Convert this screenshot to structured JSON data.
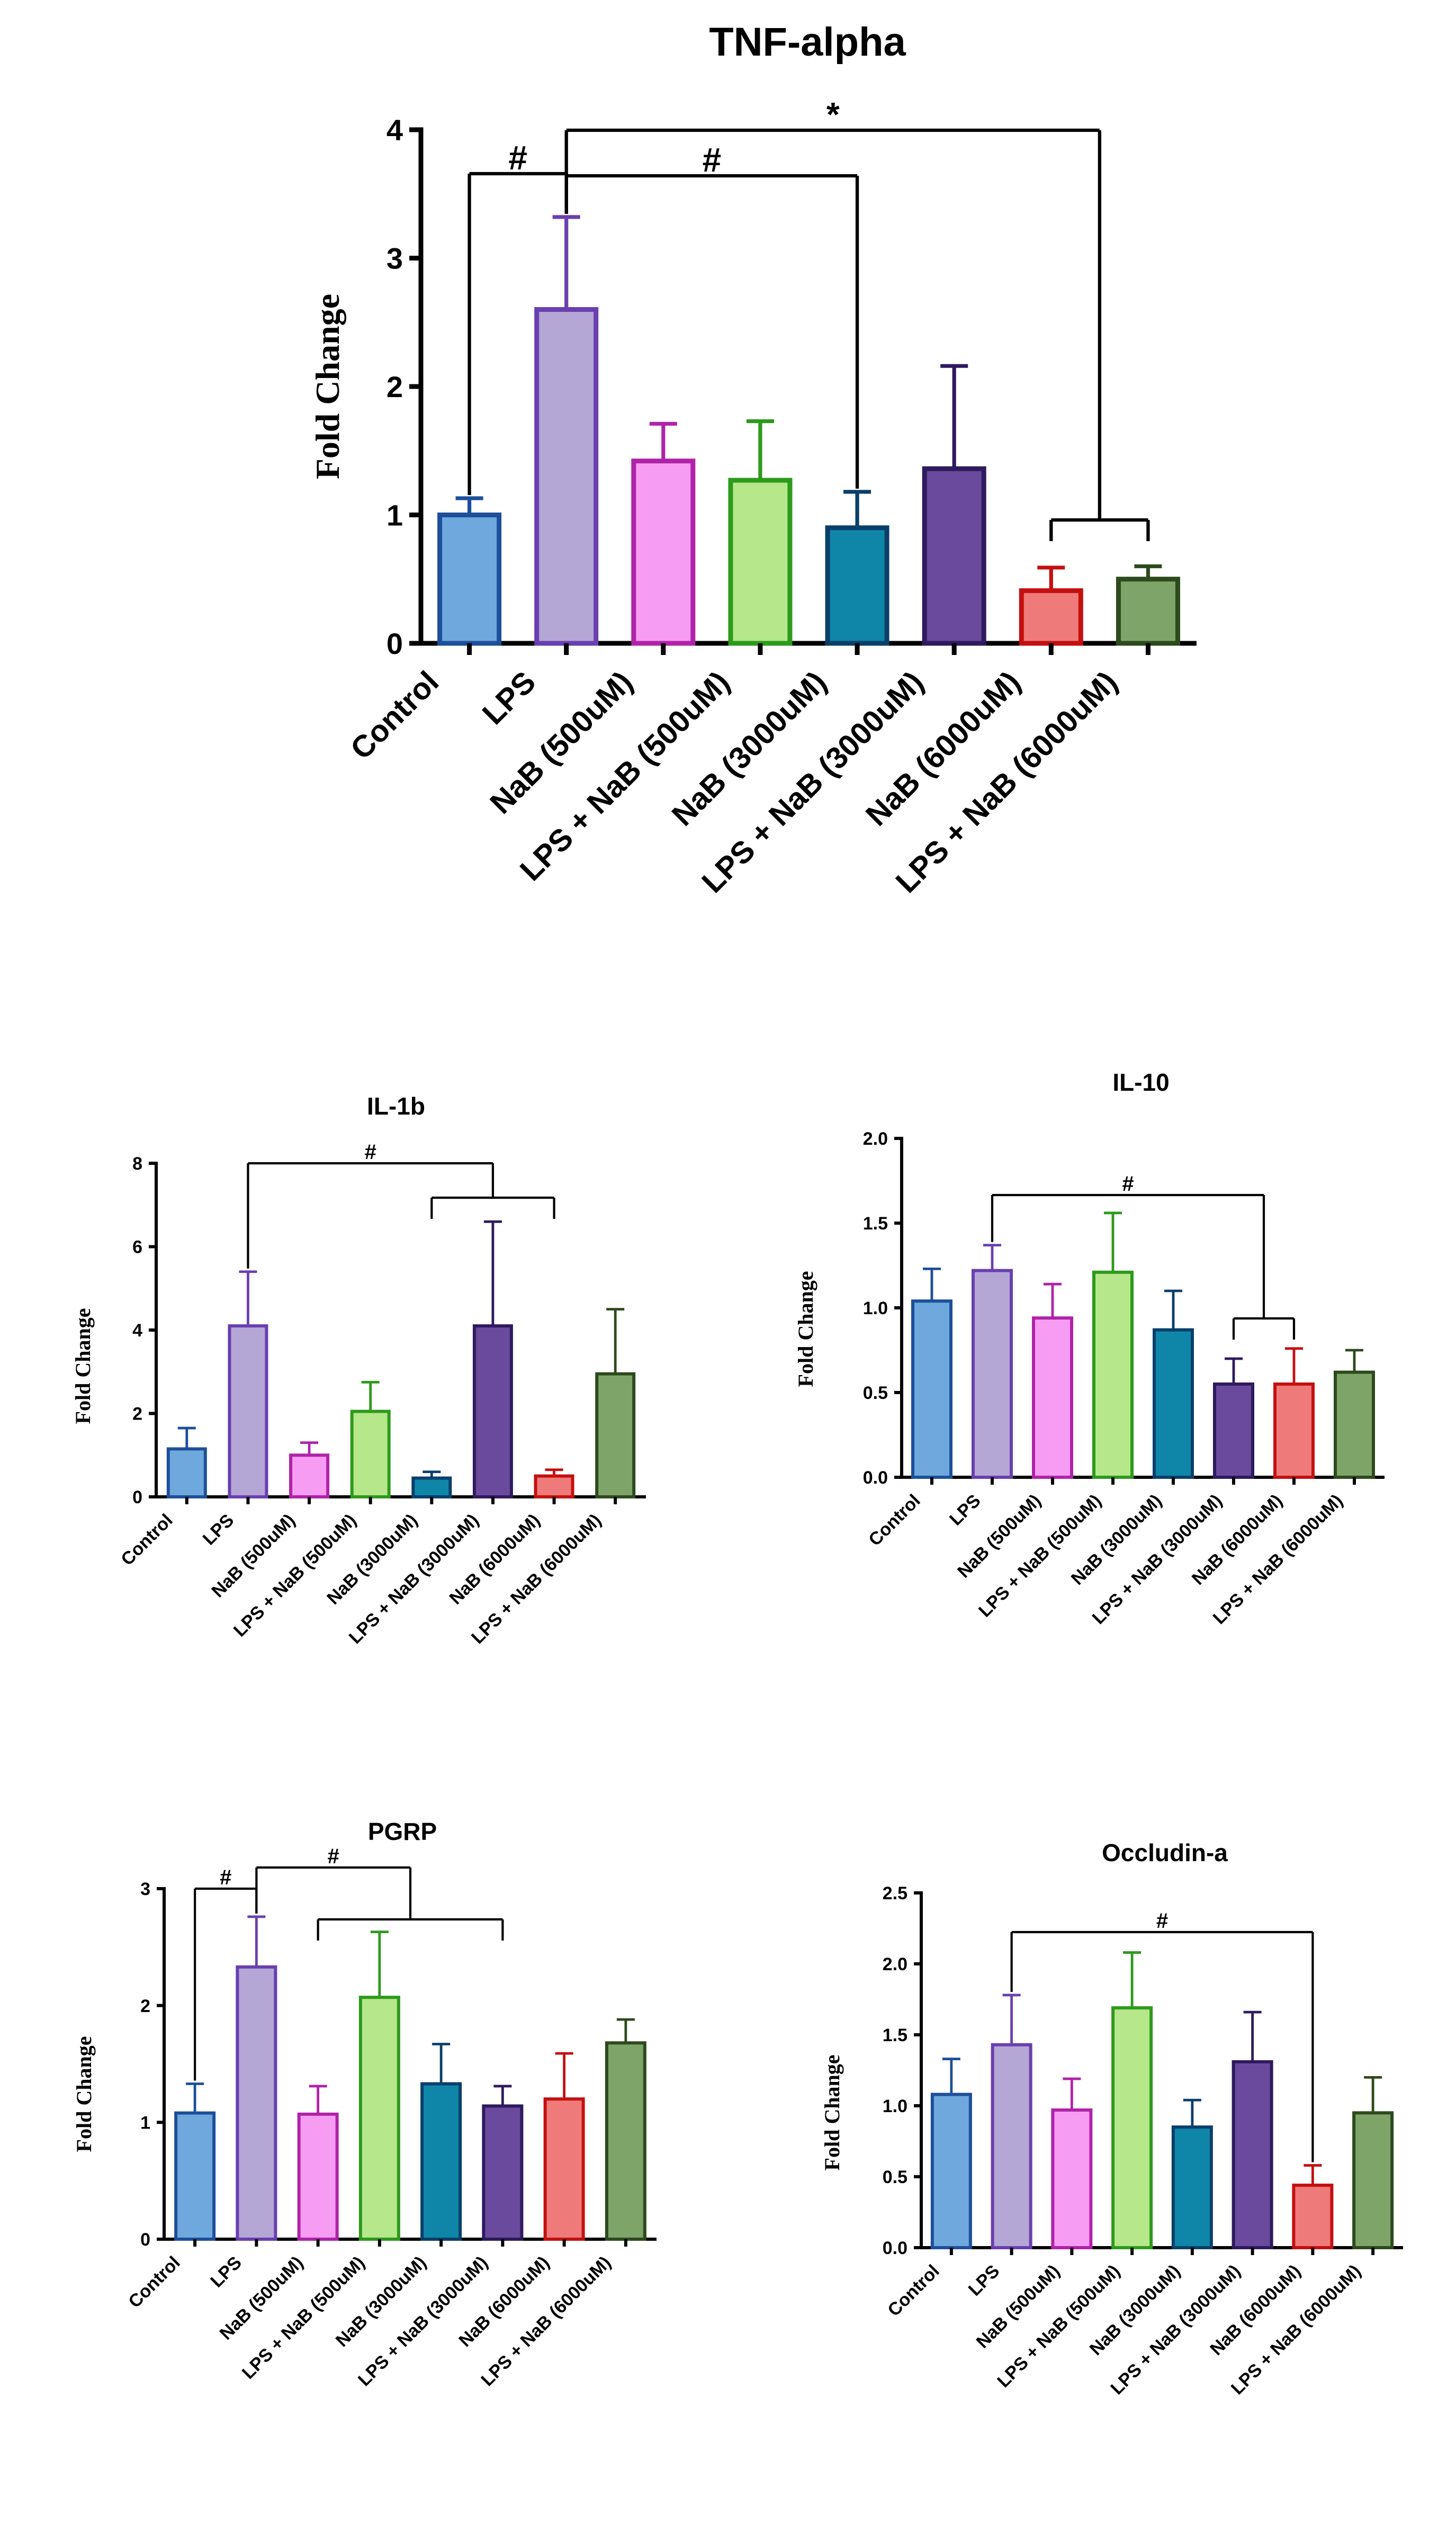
{
  "chart_data": [
    {
      "type": "bar",
      "title": "TNF-alpha",
      "ylabel": "Fold Change",
      "xlabel": "",
      "ylim": [
        0,
        4
      ],
      "yticks": [
        "0",
        "1",
        "2",
        "3",
        "4"
      ],
      "categories": [
        "Control",
        "LPS",
        "NaB (500uM)",
        "LPS + NaB (500uM)",
        "NaB (3000uM)",
        "LPS + NaB (3000uM)",
        "NaB (6000uM)",
        "LPS + NaB (6000uM)"
      ],
      "values": [
        1.0,
        2.6,
        1.42,
        1.27,
        0.9,
        1.36,
        0.41,
        0.5
      ],
      "errors": [
        0.13,
        0.72,
        0.29,
        0.46,
        0.28,
        0.8,
        0.18,
        0.1
      ],
      "brackets": [
        {
          "from": 0,
          "to": 1,
          "label": "#"
        },
        {
          "from": 1,
          "to": 4,
          "label": "#"
        },
        {
          "from": 1,
          "to": "6-7",
          "label": "*"
        }
      ]
    },
    {
      "type": "bar",
      "title": "IL-1b",
      "ylabel": "Fold Change",
      "xlabel": "",
      "ylim": [
        0,
        8
      ],
      "yticks": [
        "0",
        "2",
        "4",
        "6",
        "8"
      ],
      "categories": [
        "Control",
        "LPS",
        "NaB (500uM)",
        "LPS + NaB (500uM)",
        "NaB (3000uM)",
        "LPS + NaB (3000uM)",
        "NaB (6000uM)",
        "LPS + NaB (6000uM)"
      ],
      "values": [
        1.15,
        4.1,
        1.0,
        2.05,
        0.45,
        4.1,
        0.5,
        2.95
      ],
      "errors": [
        0.5,
        1.3,
        0.3,
        0.7,
        0.15,
        2.5,
        0.15,
        1.55
      ],
      "brackets": [
        {
          "from": 1,
          "to": "4-6",
          "label": "#"
        }
      ]
    },
    {
      "type": "bar",
      "title": "IL-10",
      "ylabel": "Fold Change",
      "xlabel": "",
      "ylim": [
        0,
        2
      ],
      "yticks": [
        "0.0",
        "0.5",
        "1.0",
        "1.5",
        "2.0"
      ],
      "categories": [
        "Control",
        "LPS",
        "NaB (500uM)",
        "LPS + NaB (500uM)",
        "NaB (3000uM)",
        "LPS + NaB (3000uM)",
        "NaB (6000uM)",
        "LPS + NaB (6000uM)"
      ],
      "values": [
        1.04,
        1.22,
        0.94,
        1.21,
        0.87,
        0.55,
        0.55,
        0.62
      ],
      "errors": [
        0.19,
        0.15,
        0.2,
        0.35,
        0.23,
        0.15,
        0.21,
        0.13
      ],
      "brackets": [
        {
          "from": 1,
          "to": "5-6",
          "label": "#"
        }
      ]
    },
    {
      "type": "bar",
      "title": "PGRP",
      "ylabel": "Fold Change",
      "xlabel": "",
      "ylim": [
        0,
        3
      ],
      "yticks": [
        "0",
        "1",
        "2",
        "3"
      ],
      "categories": [
        "Control",
        "LPS",
        "NaB (500uM)",
        "LPS + NaB (500uM)",
        "NaB (3000uM)",
        "LPS + NaB (3000uM)",
        "NaB (6000uM)",
        "LPS + NaB (6000uM)"
      ],
      "values": [
        1.08,
        2.33,
        1.07,
        2.07,
        1.33,
        1.14,
        1.2,
        1.68
      ],
      "errors": [
        0.25,
        0.43,
        0.24,
        0.56,
        0.34,
        0.17,
        0.39,
        0.2
      ],
      "brackets": [
        {
          "from": 0,
          "to": 1,
          "label": "#"
        },
        {
          "from": 1,
          "to": "2-5",
          "label": "#"
        }
      ]
    },
    {
      "type": "bar",
      "title": "Occludin-a",
      "ylabel": "Fold Change",
      "xlabel": "",
      "ylim": [
        0,
        2.5
      ],
      "yticks": [
        "0.0",
        "0.5",
        "1.0",
        "1.5",
        "2.0",
        "2.5"
      ],
      "categories": [
        "Control",
        "LPS",
        "NaB (500uM)",
        "LPS + NaB (500uM)",
        "NaB (3000uM)",
        "LPS + NaB (3000uM)",
        "NaB (6000uM)",
        "LPS + NaB (6000uM)"
      ],
      "values": [
        1.08,
        1.43,
        0.97,
        1.69,
        0.85,
        1.31,
        0.44,
        0.95
      ],
      "errors": [
        0.25,
        0.35,
        0.22,
        0.39,
        0.19,
        0.35,
        0.14,
        0.25
      ],
      "brackets": [
        {
          "from": 1,
          "to": 6,
          "label": "#"
        }
      ]
    }
  ],
  "colors": {
    "fills": [
      "#6fa8dc",
      "#b4a7d6",
      "#f79cf3",
      "#b6e78a",
      "#0f86a8",
      "#6a4a9c",
      "#ef7a7a",
      "#7ea46a"
    ],
    "edges": [
      "#1d4f9a",
      "#6a3fb0",
      "#b023a8",
      "#2d9a1c",
      "#0a3f6a",
      "#2e1a5e",
      "#c41010",
      "#2d4a1d"
    ]
  }
}
